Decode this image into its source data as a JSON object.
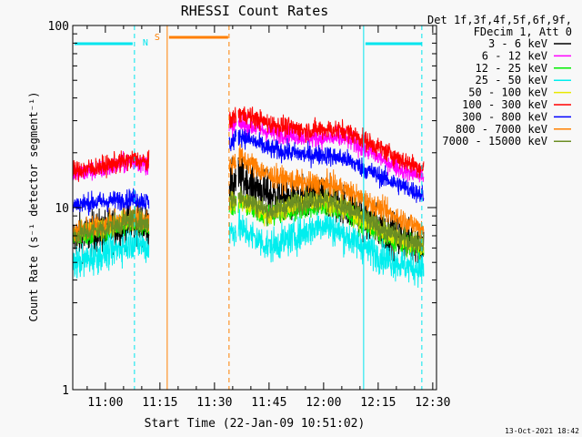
{
  "chart_data": {
    "type": "line",
    "title": "RHESSI Count Rates",
    "xlabel": "Start Time (22-Jan-09 10:51:02)",
    "ylabel": "Count Rate (s⁻¹ detector segment⁻¹)",
    "yscale": "log",
    "ylim": [
      1,
      100
    ],
    "xlim": [
      "10:51:02",
      "12:31:02"
    ],
    "x_tick_labels": [
      "11:00",
      "11:15",
      "11:30",
      "11:45",
      "12:00",
      "12:15",
      "12:30"
    ],
    "y_tick_labels": [
      "1",
      "10",
      "100"
    ],
    "legend_header": [
      "Det 1f,3f,4f,5f,6f,9f,",
      "FDecim 1, Att 0"
    ],
    "legend_position": "right, outside",
    "footer_date": "13-Oct-2021 18:42",
    "data_gaps": [
      [
        "11:12:00",
        "11:34:00"
      ],
      [
        "11:36:00",
        "11:36:30"
      ]
    ],
    "night_interval": {
      "label": "N",
      "start": "10:51:02",
      "end": "11:08:00",
      "color": "#00e5ee"
    },
    "night_interval_2": {
      "start": "12:11:00",
      "end": "12:31:02",
      "color": "#00e5ee"
    },
    "saa_interval": {
      "label": "S",
      "start": "11:17:00",
      "end": "11:34:00",
      "color": "#ff7f00"
    },
    "night_line_times": [
      "10:51:02",
      "11:08:00",
      "12:11:00",
      "12:27:00"
    ],
    "saa_line_times": [
      "11:17:00",
      "11:34:00"
    ],
    "series": [
      {
        "name": "3 - 6 keV",
        "color": "#000000",
        "noise": 0.13,
        "points": [
          [
            "10:51",
            "6.8"
          ],
          [
            "11:00",
            "7.5"
          ],
          [
            "11:08",
            "8.4"
          ],
          [
            "11:15",
            "7.4"
          ],
          [
            "11:37",
            "14.5"
          ],
          [
            "11:45",
            "11.8"
          ],
          [
            "11:52",
            "10.8"
          ],
          [
            "12:00",
            "11.5"
          ],
          [
            "12:06",
            "10.2"
          ],
          [
            "12:15",
            "7.8"
          ],
          [
            "12:22",
            "6.7"
          ],
          [
            "12:27",
            "6.3"
          ]
        ]
      },
      {
        "name": "6 - 12 keV",
        "color": "#ff00ff",
        "noise": 0.06,
        "points": [
          [
            "10:51",
            "15.2"
          ],
          [
            "11:00",
            "16.4"
          ],
          [
            "11:08",
            "18.0"
          ],
          [
            "11:15",
            "16.3"
          ],
          [
            "11:37",
            "29.0"
          ],
          [
            "11:45",
            "26.0"
          ],
          [
            "11:55",
            "24.5"
          ],
          [
            "12:00",
            "24.0"
          ],
          [
            "12:06",
            "24.0"
          ],
          [
            "12:15",
            "19.0"
          ],
          [
            "12:22",
            "16.0"
          ],
          [
            "12:27",
            "15.0"
          ]
        ]
      },
      {
        "name": "12 - 25 keV",
        "color": "#00ee00",
        "noise": 0.06,
        "points": [
          [
            "10:51",
            "6.8"
          ],
          [
            "11:00",
            "7.4"
          ],
          [
            "11:08",
            "8.3"
          ],
          [
            "11:15",
            "7.4"
          ],
          [
            "11:37",
            "10.5"
          ],
          [
            "11:45",
            "8.8"
          ],
          [
            "11:52",
            "9.6"
          ],
          [
            "12:00",
            "10.2"
          ],
          [
            "12:06",
            "9.4"
          ],
          [
            "12:15",
            "7.2"
          ],
          [
            "12:22",
            "6.2"
          ],
          [
            "12:27",
            "5.9"
          ]
        ]
      },
      {
        "name": "25 - 50 keV",
        "color": "#00eeee",
        "noise": 0.1,
        "points": [
          [
            "10:51",
            "4.9"
          ],
          [
            "11:00",
            "5.6"
          ],
          [
            "11:08",
            "6.5"
          ],
          [
            "11:15",
            "5.6"
          ],
          [
            "11:37",
            "7.7"
          ],
          [
            "11:45",
            "6.1"
          ],
          [
            "11:52",
            "6.9"
          ],
          [
            "12:00",
            "8.2"
          ],
          [
            "12:06",
            "7.0"
          ],
          [
            "12:15",
            "5.5"
          ],
          [
            "12:22",
            "4.8"
          ],
          [
            "12:27",
            "4.6"
          ]
        ]
      },
      {
        "name": "50 - 100 keV",
        "color": "#e8e800",
        "noise": 0.06,
        "points": [
          [
            "10:51",
            "7.1"
          ],
          [
            "11:00",
            "7.8"
          ],
          [
            "11:08",
            "8.7"
          ],
          [
            "11:15",
            "7.6"
          ],
          [
            "11:37",
            "11.0"
          ],
          [
            "11:45",
            "9.0"
          ],
          [
            "11:52",
            "10.3"
          ],
          [
            "12:00",
            "11.0"
          ],
          [
            "12:06",
            "9.7"
          ],
          [
            "12:15",
            "7.6"
          ],
          [
            "12:22",
            "6.5"
          ],
          [
            "12:27",
            "6.2"
          ]
        ]
      },
      {
        "name": "100 - 300 keV",
        "color": "#ff0000",
        "noise": 0.06,
        "points": [
          [
            "10:51",
            "15.8"
          ],
          [
            "11:00",
            "17.0"
          ],
          [
            "11:08",
            "18.5"
          ],
          [
            "11:15",
            "16.8"
          ],
          [
            "11:37",
            "33.0"
          ],
          [
            "11:45",
            "29.0"
          ],
          [
            "11:55",
            "26.5"
          ],
          [
            "12:00",
            "27.0"
          ],
          [
            "12:06",
            "26.5"
          ],
          [
            "12:15",
            "21.5"
          ],
          [
            "12:22",
            "18.0"
          ],
          [
            "12:27",
            "16.5"
          ]
        ]
      },
      {
        "name": "300 - 800 keV",
        "color": "#0000ff",
        "noise": 0.06,
        "points": [
          [
            "10:51",
            "10.4"
          ],
          [
            "11:00",
            "10.8"
          ],
          [
            "11:08",
            "11.2"
          ],
          [
            "11:15",
            "10.4"
          ],
          [
            "11:37",
            "25.0"
          ],
          [
            "11:45",
            "21.0"
          ],
          [
            "11:55",
            "19.5"
          ],
          [
            "12:00",
            "19.5"
          ],
          [
            "12:06",
            "18.5"
          ],
          [
            "12:15",
            "15.0"
          ],
          [
            "12:22",
            "13.0"
          ],
          [
            "12:27",
            "11.8"
          ]
        ]
      },
      {
        "name": "800 - 7000 keV",
        "color": "#ff7f00",
        "noise": 0.07,
        "points": [
          [
            "10:51",
            "7.3"
          ],
          [
            "11:00",
            "8.1"
          ],
          [
            "11:08",
            "8.9"
          ],
          [
            "11:15",
            "8.0"
          ],
          [
            "11:37",
            "19.0"
          ],
          [
            "11:45",
            "15.0"
          ],
          [
            "11:55",
            "13.5"
          ],
          [
            "12:00",
            "13.5"
          ],
          [
            "12:06",
            "12.5"
          ],
          [
            "12:15",
            "10.0"
          ],
          [
            "12:22",
            "8.5"
          ],
          [
            "12:27",
            "7.7"
          ]
        ]
      },
      {
        "name": "7000 - 15000 keV",
        "color": "#6b8e23",
        "noise": 0.07,
        "points": [
          [
            "10:51",
            "7.0"
          ],
          [
            "11:00",
            "7.7"
          ],
          [
            "11:08",
            "8.6"
          ],
          [
            "11:15",
            "7.7"
          ],
          [
            "11:37",
            "11.5"
          ],
          [
            "11:45",
            "9.5"
          ],
          [
            "11:52",
            "10.6"
          ],
          [
            "12:00",
            "11.2"
          ],
          [
            "12:06",
            "10.0"
          ],
          [
            "12:15",
            "7.8"
          ],
          [
            "12:22",
            "6.7"
          ],
          [
            "12:27",
            "6.4"
          ]
        ]
      }
    ]
  }
}
